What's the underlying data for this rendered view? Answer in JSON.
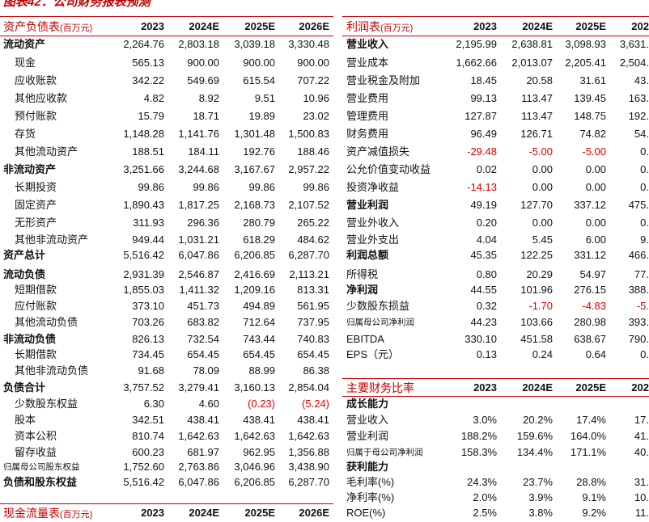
{
  "title": "图表42：公司财务报表预测",
  "balance_sheet": {
    "title": "资产负债表",
    "unit": "(百万元)",
    "columns": [
      "2023",
      "2024E",
      "2025E",
      "2026E"
    ],
    "rows": [
      {
        "label": "流动资产",
        "bold": true,
        "values": [
          "2,264.76",
          "2,803.18",
          "3,039.18",
          "3,330.48"
        ]
      },
      {
        "label": "现金",
        "values": [
          "565.13",
          "900.00",
          "900.00",
          "900.00"
        ]
      },
      {
        "label": "应收账款",
        "values": [
          "342.22",
          "549.69",
          "615.54",
          "707.22"
        ]
      },
      {
        "label": "其他应收款",
        "values": [
          "4.82",
          "8.92",
          "9.51",
          "10.96"
        ]
      },
      {
        "label": "预付账款",
        "values": [
          "15.79",
          "18.71",
          "19.89",
          "23.02"
        ]
      },
      {
        "label": "存货",
        "values": [
          "1,148.28",
          "1,141.76",
          "1,301.48",
          "1,500.83"
        ]
      },
      {
        "label": "其他流动资产",
        "values": [
          "188.51",
          "184.11",
          "192.76",
          "188.46"
        ]
      },
      {
        "label": "非流动资产",
        "bold": true,
        "values": [
          "3,251.66",
          "3,244.68",
          "3,167.67",
          "2,957.22"
        ]
      },
      {
        "label": "长期投资",
        "values": [
          "99.86",
          "99.86",
          "99.86",
          "99.86"
        ]
      },
      {
        "label": "固定资产",
        "values": [
          "1,890.43",
          "1,817.25",
          "2,168.73",
          "2,107.52"
        ]
      },
      {
        "label": "无形资产",
        "values": [
          "311.93",
          "296.36",
          "280.79",
          "265.22"
        ]
      },
      {
        "label": "其他非流动资产",
        "values": [
          "949.44",
          "1,031.21",
          "618.29",
          "484.62"
        ]
      },
      {
        "label": "资产总计",
        "bold": true,
        "values": [
          "5,516.42",
          "6,047.86",
          "6,206.85",
          "6,287.70"
        ]
      },
      {
        "label": "流动负债",
        "bold": true,
        "values": [
          "2,931.39",
          "2,546.87",
          "2,416.69",
          "2,113.21"
        ]
      },
      {
        "label": "短期借款",
        "values": [
          "1,855.03",
          "1,411.32",
          "1,209.16",
          "813.31"
        ]
      },
      {
        "label": "应付账款",
        "values": [
          "373.10",
          "451.73",
          "494.89",
          "561.95"
        ]
      },
      {
        "label": "其他流动负债",
        "values": [
          "703.26",
          "683.82",
          "712.64",
          "737.95"
        ]
      },
      {
        "label": "非流动负债",
        "bold": true,
        "values": [
          "826.13",
          "732.54",
          "743.44",
          "740.83"
        ]
      },
      {
        "label": "长期借款",
        "values": [
          "734.45",
          "654.45",
          "654.45",
          "654.45"
        ]
      },
      {
        "label": "其他非流动负债",
        "values": [
          "91.68",
          "78.09",
          "88.99",
          "86.38"
        ]
      },
      {
        "label": "负债合计",
        "bold": true,
        "values": [
          "3,757.52",
          "3,279.41",
          "3,160.13",
          "2,854.04"
        ]
      },
      {
        "label": "少数股东权益",
        "values": [
          "6.30",
          "4.60",
          "(0.23)",
          "(5.24)"
        ]
      },
      {
        "label": "股本",
        "values": [
          "342.51",
          "438.41",
          "438.41",
          "438.41"
        ]
      },
      {
        "label": "资本公积",
        "values": [
          "810.74",
          "1,642.63",
          "1,642.63",
          "1,642.63"
        ]
      },
      {
        "label": "留存收益",
        "values": [
          "600.23",
          "681.97",
          "962.95",
          "1,356.88"
        ]
      },
      {
        "label": "归属母公司股东权益",
        "small": true,
        "values": [
          "1,752.60",
          "2,763.86",
          "3,046.96",
          "3,438.90"
        ]
      },
      {
        "label": "负债和股东权益",
        "bold": true,
        "values": [
          "5,516.42",
          "6,047.86",
          "6,206.85",
          "6,287.70"
        ]
      }
    ]
  },
  "cash_flow": {
    "title": "现金流量表",
    "unit": "(百万元)",
    "columns": [
      "2023",
      "2024E",
      "2025E",
      "2026E"
    ]
  },
  "income_statement": {
    "title": "利润表",
    "unit": "(百万元)",
    "columns": [
      "2023",
      "2024E",
      "2025E",
      "202"
    ],
    "rows": [
      {
        "label": "营业收入",
        "bold": true,
        "values": [
          "2,195.99",
          "2,638.81",
          "3,098.93",
          "3,631."
        ]
      },
      {
        "label": "营业成本",
        "values": [
          "1,662.66",
          "2,013.07",
          "2,205.41",
          "2,504."
        ]
      },
      {
        "label": "营业税金及附加",
        "values": [
          "18.45",
          "20.58",
          "31.61",
          "43."
        ]
      },
      {
        "label": "营业费用",
        "values": [
          "99.13",
          "113.47",
          "139.45",
          "163."
        ]
      },
      {
        "label": "管理费用",
        "values": [
          "127.87",
          "113.47",
          "148.75",
          "192."
        ]
      },
      {
        "label": "财务费用",
        "values": [
          "96.49",
          "126.71",
          "74.82",
          "54."
        ]
      },
      {
        "label": "资产减值损失",
        "values": [
          "-29.48",
          "-5.00",
          "-5.00",
          "0."
        ]
      },
      {
        "label": "公允价值变动收益",
        "values": [
          "0.02",
          "0.00",
          "0.00",
          "0."
        ]
      },
      {
        "label": "投资净收益",
        "values": [
          "-14.13",
          "0.00",
          "0.00",
          "0."
        ]
      },
      {
        "label": "营业利润",
        "bold": true,
        "values": [
          "49.19",
          "127.70",
          "337.12",
          "475."
        ]
      },
      {
        "label": "营业外收入",
        "values": [
          "0.20",
          "0.00",
          "0.00",
          "0."
        ]
      },
      {
        "label": "营业外支出",
        "values": [
          "4.04",
          "5.45",
          "6.00",
          "9."
        ]
      },
      {
        "label": "利润总额",
        "bold": true,
        "values": [
          "45.35",
          "122.25",
          "331.12",
          "466."
        ]
      },
      {
        "label": "所得税",
        "values": [
          "0.80",
          "20.29",
          "54.97",
          "77."
        ]
      },
      {
        "label": "净利润",
        "bold": true,
        "values": [
          "44.55",
          "101.96",
          "276.15",
          "388."
        ]
      },
      {
        "label": "少数股东损益",
        "values": [
          "0.32",
          "-1.70",
          "-4.83",
          "-5."
        ]
      },
      {
        "label": "归属母公司净利润",
        "small": true,
        "values": [
          "44.23",
          "103.66",
          "280.98",
          "393."
        ]
      },
      {
        "label": "EBITDA",
        "values": [
          "330.10",
          "451.58",
          "638.67",
          "790."
        ]
      },
      {
        "label": "EPS（元）",
        "values": [
          "0.13",
          "0.24",
          "0.64",
          "0."
        ]
      }
    ]
  },
  "ratios": {
    "title": "主要财务比率",
    "columns": [
      "2023",
      "2024E",
      "2025E",
      "202"
    ],
    "rows": [
      {
        "label": "成长能力",
        "bold": true,
        "values": []
      },
      {
        "label": "营业收入",
        "values": [
          "3.0%",
          "20.2%",
          "17.4%",
          "17."
        ]
      },
      {
        "label": "营业利润",
        "values": [
          "188.2%",
          "159.6%",
          "164.0%",
          "41."
        ]
      },
      {
        "label": "归属于母公司净利润",
        "small": true,
        "values": [
          "158.3%",
          "134.4%",
          "171.1%",
          "40."
        ]
      },
      {
        "label": "获利能力",
        "bold": true,
        "values": []
      },
      {
        "label": "毛利率(%)",
        "values": [
          "24.3%",
          "23.7%",
          "28.8%",
          "31."
        ]
      },
      {
        "label": "净利率(%)",
        "values": [
          "2.0%",
          "3.9%",
          "9.1%",
          "10."
        ]
      },
      {
        "label": "ROE(%)",
        "values": [
          "2.5%",
          "3.8%",
          "9.2%",
          "11."
        ]
      }
    ]
  }
}
